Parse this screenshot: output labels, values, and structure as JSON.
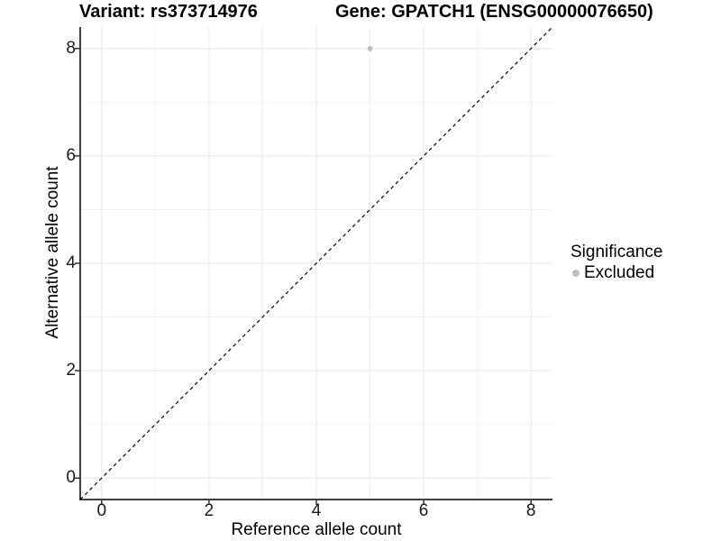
{
  "titles": {
    "variant": "Variant: rs373714976",
    "gene": "Gene: GPATCH1 (ENSG00000076650)"
  },
  "chart_data": {
    "type": "scatter",
    "title_variant": "Variant: rs373714976",
    "title_gene": "Gene: GPATCH1 (ENSG00000076650)",
    "xlabel": "Reference allele count",
    "ylabel": "Alternative allele count",
    "xlim": [
      -0.4,
      8.4
    ],
    "ylim": [
      -0.4,
      8.4
    ],
    "x_ticks": [
      0,
      2,
      4,
      6,
      8
    ],
    "y_ticks": [
      0,
      2,
      4,
      6,
      8
    ],
    "x_minor_ticks": [
      1,
      3,
      5,
      7
    ],
    "y_minor_ticks": [
      1,
      3,
      5,
      7
    ],
    "grid": "major+minor",
    "points": [
      {
        "x": 5,
        "y": 8,
        "significance": "Excluded",
        "color": "#bebebe"
      }
    ],
    "reference_line": {
      "style": "dashed",
      "from": [
        -0.4,
        -0.4
      ],
      "to": [
        8.4,
        8.4
      ],
      "color": "#000000"
    },
    "legend": {
      "position": "right",
      "title": "Significance",
      "entries": [
        {
          "label": "Excluded",
          "color": "#bebebe"
        }
      ]
    },
    "colors": {
      "grid_major": "#e7e7e7",
      "grid_minor": "#f2f2f2",
      "axis_line": "#404040",
      "tick_mark": "#333333",
      "point": "#bebebe"
    }
  }
}
